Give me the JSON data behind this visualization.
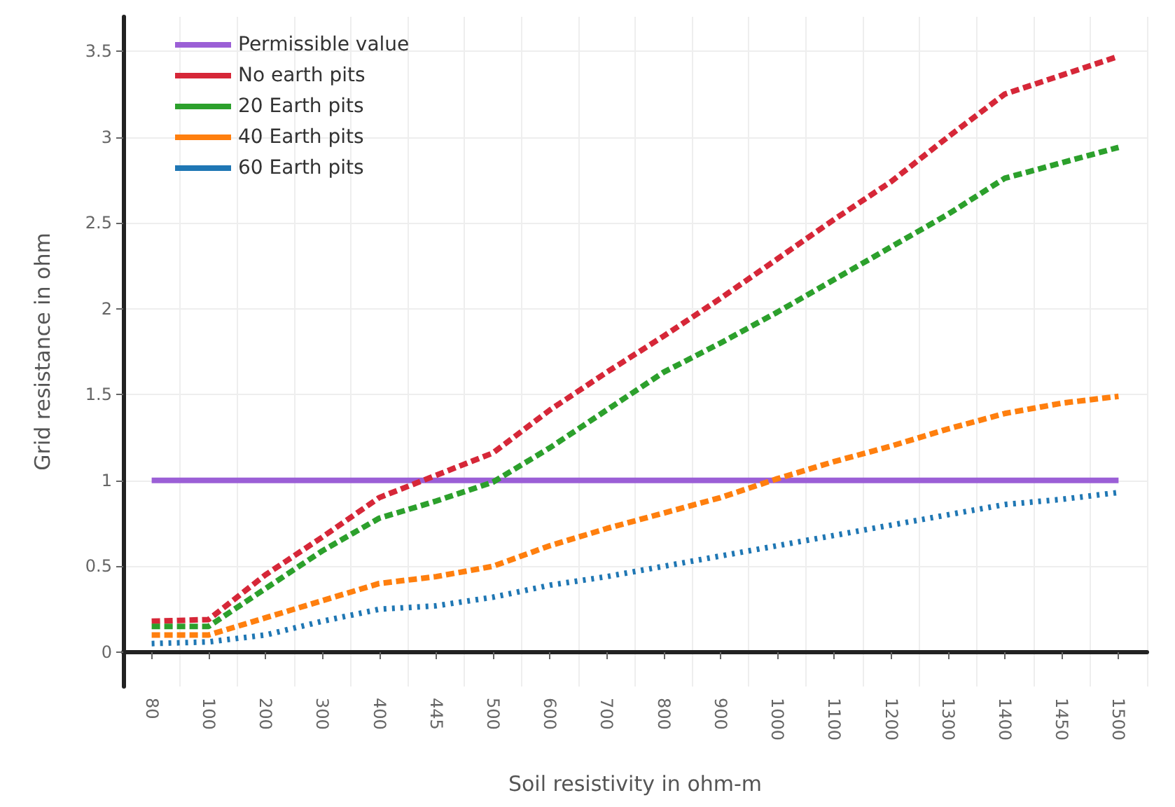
{
  "chart_data": {
    "type": "line",
    "xlabel": "Soil resistivity in ohm-m",
    "ylabel": "Grid resistance in ohm",
    "categories": [
      "80",
      "100",
      "200",
      "300",
      "400",
      "445",
      "500",
      "600",
      "700",
      "800",
      "900",
      "1000",
      "1100",
      "1200",
      "1300",
      "1400",
      "1450",
      "1500"
    ],
    "series": [
      {
        "name": "Permissible value",
        "color": "#9b5fd6",
        "line_style": "solid",
        "values": [
          1,
          1,
          1,
          1,
          1,
          1,
          1,
          1,
          1,
          1,
          1,
          1,
          1,
          1,
          1,
          1,
          1,
          1
        ]
      },
      {
        "name": "No earth pits",
        "color": "#d62738",
        "line_style": "dashed",
        "values": [
          0.18,
          0.19,
          0.45,
          0.67,
          0.9,
          1.03,
          1.16,
          1.41,
          1.63,
          1.84,
          2.06,
          2.29,
          2.52,
          2.74,
          3.0,
          3.25,
          3.36,
          3.47
        ]
      },
      {
        "name": "20 Earth pits",
        "color": "#2ca02c",
        "line_style": "dashed",
        "values": [
          0.15,
          0.15,
          0.37,
          0.59,
          0.78,
          0.88,
          0.99,
          1.19,
          1.41,
          1.63,
          1.8,
          1.98,
          2.17,
          2.36,
          2.55,
          2.76,
          2.85,
          2.94
        ]
      },
      {
        "name": "40 Earth pits",
        "color": "#ff7f0e",
        "line_style": "dashed",
        "values": [
          0.1,
          0.1,
          0.2,
          0.3,
          0.4,
          0.44,
          0.5,
          0.62,
          0.72,
          0.81,
          0.9,
          1.01,
          1.11,
          1.2,
          1.3,
          1.39,
          1.45,
          1.49
        ]
      },
      {
        "name": "60 Earth pits",
        "color": "#1f77b4",
        "line_style": "dotted",
        "values": [
          0.05,
          0.06,
          0.1,
          0.18,
          0.25,
          0.27,
          0.32,
          0.39,
          0.44,
          0.5,
          0.56,
          0.62,
          0.68,
          0.74,
          0.8,
          0.86,
          0.89,
          0.93
        ]
      }
    ],
    "ylim": [
      -0.2,
      3.7
    ],
    "yticks": [
      0,
      0.5,
      1,
      1.5,
      2,
      2.5,
      3,
      3.5
    ],
    "grid": true,
    "legend": "top left",
    "marker": "none"
  }
}
